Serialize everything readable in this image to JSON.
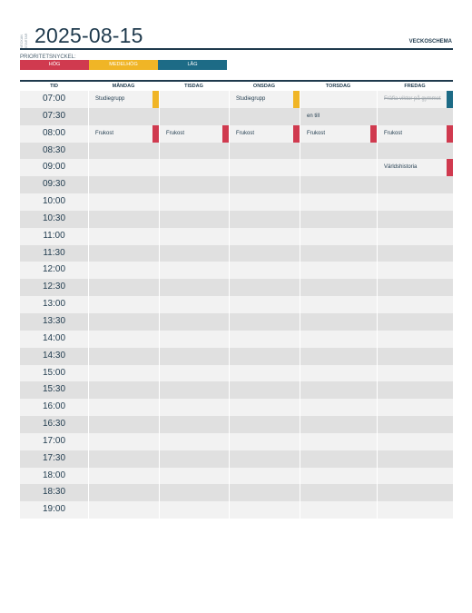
{
  "header": {
    "vertical_label_1": "VECKAN",
    "vertical_label_2": "STARTAR",
    "date": "2025-08-15",
    "title": "VECKOSCHEMA"
  },
  "priority_key": {
    "label": "PRIORITETSNYCKEL:",
    "items": [
      {
        "label": "HÖG",
        "color": "#d03a4f"
      },
      {
        "label": "MEDELHÖG",
        "color": "#f0b526"
      },
      {
        "label": "LÅG",
        "color": "#1d6b86"
      }
    ]
  },
  "columns": [
    "TID",
    "MÅNDAG",
    "TISDAG",
    "ONSDAG",
    "TORSDAG",
    "FREDAG"
  ],
  "times": [
    "07:00",
    "07:30",
    "08:00",
    "08:30",
    "09:00",
    "09:30",
    "10:00",
    "10:30",
    "11:00",
    "11:30",
    "12:00",
    "12:30",
    "13:00",
    "13:30",
    "14:00",
    "14:30",
    "15:00",
    "15:30",
    "16:00",
    "16:30",
    "17:00",
    "17:30",
    "18:00",
    "18:30",
    "19:00"
  ],
  "events": [
    {
      "row": 0,
      "col": 1,
      "text": "Studiegrupp",
      "priority": "#f0b526",
      "struck": false
    },
    {
      "row": 0,
      "col": 3,
      "text": "Studiegrupp",
      "priority": "#f0b526",
      "struck": false
    },
    {
      "row": 0,
      "col": 5,
      "text": "Fräfia viktor på gymmet",
      "priority": "#1d6b86",
      "struck": true
    },
    {
      "row": 1,
      "col": 4,
      "text": "en till",
      "priority": "",
      "struck": false
    },
    {
      "row": 2,
      "col": 1,
      "text": "Frukost",
      "priority": "#d03a4f",
      "struck": false
    },
    {
      "row": 2,
      "col": 2,
      "text": "Frukost",
      "priority": "#d03a4f",
      "struck": false
    },
    {
      "row": 2,
      "col": 3,
      "text": "Frukost",
      "priority": "#d03a4f",
      "struck": false
    },
    {
      "row": 2,
      "col": 4,
      "text": "Frukost",
      "priority": "#d03a4f",
      "struck": false
    },
    {
      "row": 2,
      "col": 5,
      "text": "Frukost",
      "priority": "#d03a4f",
      "struck": false
    },
    {
      "row": 4,
      "col": 5,
      "text": "Världshistoria",
      "priority": "#d03a4f",
      "struck": false
    }
  ]
}
